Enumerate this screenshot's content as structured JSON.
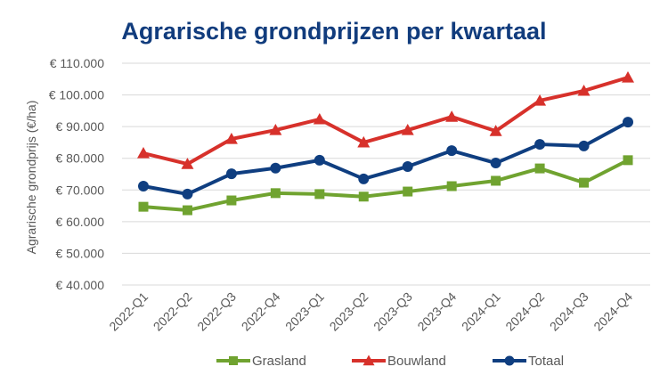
{
  "chart_data": {
    "type": "line",
    "title": "Agrarische grondprijzen per kwartaal",
    "xlabel": "",
    "ylabel": "Agrarische grondprijs (€/ha)",
    "ylim": [
      40000,
      110000
    ],
    "yticks": [
      40000,
      50000,
      60000,
      70000,
      80000,
      90000,
      100000,
      110000
    ],
    "ytick_labels": [
      "€ 40.000",
      "€ 50.000",
      "€ 60.000",
      "€ 70.000",
      "€ 80.000",
      "€ 90.000",
      "€ 100.000",
      "€ 110.000"
    ],
    "grid": true,
    "legend_position": "bottom",
    "categories": [
      "2022-Q1",
      "2022-Q2",
      "2022-Q3",
      "2022-Q4",
      "2023-Q1",
      "2023-Q2",
      "2023-Q3",
      "2023-Q4",
      "2024-Q1",
      "2024-Q2",
      "2024-Q3",
      "2024-Q4"
    ],
    "series": [
      {
        "name": "Grasland",
        "color": "#70a330",
        "marker": "square",
        "values": [
          64700,
          63600,
          66700,
          69000,
          68700,
          67900,
          69500,
          71200,
          72900,
          76800,
          72300,
          79400
        ]
      },
      {
        "name": "Bouwland",
        "color": "#d7312b",
        "marker": "triangle",
        "values": [
          81600,
          78200,
          86100,
          88900,
          92300,
          85000,
          88900,
          93100,
          88600,
          98200,
          101300,
          105500
        ]
      },
      {
        "name": "Totaal",
        "color": "#0f3e80",
        "marker": "circle",
        "values": [
          71200,
          68700,
          75100,
          76900,
          79400,
          73500,
          77400,
          82400,
          78500,
          84400,
          83900,
          91400
        ]
      }
    ]
  }
}
